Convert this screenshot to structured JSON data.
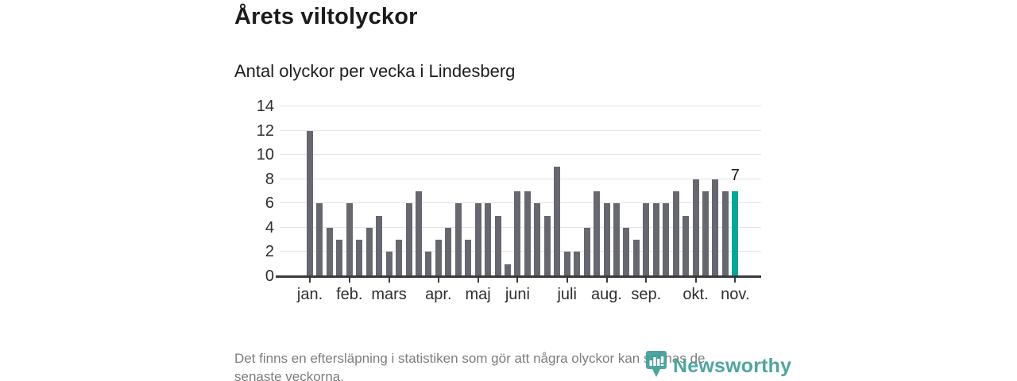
{
  "header": {
    "title": "Årets viltolyckor",
    "subtitle": "Antal olyckor per vecka i Lindesberg"
  },
  "footer": {
    "line1": "Det finns en eftersläpning i statistiken som gör att några olyckor kan saknas de",
    "line2": "senaste veckorna."
  },
  "branding": {
    "logo_text": "Newsworthy",
    "logo_icon": "bar-chart-badge-icon",
    "logo_color": "#3f9e97"
  },
  "chart_data": {
    "type": "bar",
    "title": "Årets viltolyckor",
    "subtitle": "Antal olyckor per vecka i Lindesberg",
    "x_unit": "vecka (week of year)",
    "values": [
      12,
      6,
      4,
      3,
      6,
      3,
      4,
      5,
      2,
      3,
      6,
      7,
      2,
      3,
      4,
      6,
      3,
      6,
      6,
      5,
      1,
      7,
      7,
      6,
      5,
      9,
      2,
      2,
      4,
      7,
      6,
      6,
      4,
      3,
      6,
      6,
      6,
      7,
      5,
      8,
      7,
      8,
      7,
      7
    ],
    "highlight_index": 43,
    "highlight_value_label": "7",
    "month_ticks": [
      {
        "label": "jan.",
        "week": 1
      },
      {
        "label": "feb.",
        "week": 5
      },
      {
        "label": "mars",
        "week": 9
      },
      {
        "label": "apr.",
        "week": 14
      },
      {
        "label": "maj",
        "week": 18
      },
      {
        "label": "juni",
        "week": 22
      },
      {
        "label": "juli",
        "week": 27
      },
      {
        "label": "aug.",
        "week": 31
      },
      {
        "label": "sep.",
        "week": 35
      },
      {
        "label": "okt.",
        "week": 40
      },
      {
        "label": "nov.",
        "week": 44
      }
    ],
    "y_ticks": [
      0,
      2,
      4,
      6,
      8,
      10,
      12,
      14
    ],
    "ylim": [
      0,
      14
    ],
    "grid": true,
    "legend": false,
    "bar_color": "#67676f",
    "highlight_color": "#00a79b"
  }
}
